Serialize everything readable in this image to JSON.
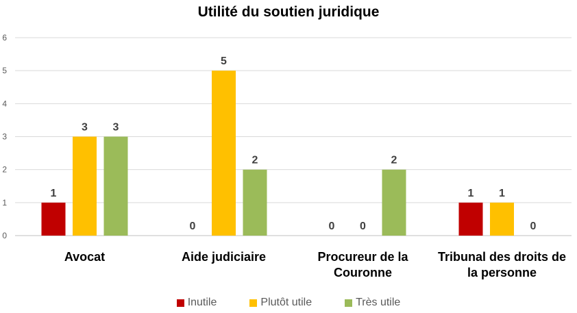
{
  "chart_data": {
    "type": "bar",
    "title": "Utilité du soutien juridique",
    "categories": [
      "Avocat",
      "Aide judiciaire",
      "Procureur de la Couronne",
      "Tribunal des droits de la personne"
    ],
    "category_lines": [
      [
        "Avocat"
      ],
      [
        "Aide judiciaire"
      ],
      [
        "Procureur de la",
        "Couronne"
      ],
      [
        "Tribunal des droits de",
        "la personne"
      ]
    ],
    "series": [
      {
        "name": "Inutile",
        "color": "#C00000",
        "values": [
          1,
          0,
          0,
          1
        ]
      },
      {
        "name": "Plutôt utile",
        "color": "#FFC000",
        "values": [
          3,
          5,
          0,
          1
        ]
      },
      {
        "name": "Très utile",
        "color": "#9BBB59",
        "values": [
          3,
          2,
          2,
          0
        ]
      }
    ],
    "y_ticks": [
      0,
      1,
      2,
      3,
      4,
      5,
      6
    ],
    "ylim": [
      0,
      6
    ],
    "xlabel": "",
    "ylabel": "",
    "grid": true,
    "legend_position": "bottom",
    "data_labels": true
  }
}
